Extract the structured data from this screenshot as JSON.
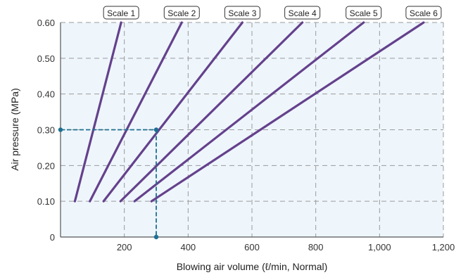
{
  "chart_data": {
    "type": "line",
    "xlabel": "Blowing air volume (ℓ/min, Normal)",
    "ylabel": "Air pressure (MPa)",
    "xlim": [
      0,
      1200
    ],
    "ylim": [
      0,
      0.6
    ],
    "x_ticks": [
      {
        "value": 200,
        "label": "200"
      },
      {
        "value": 400,
        "label": "400"
      },
      {
        "value": 600,
        "label": "600"
      },
      {
        "value": 800,
        "label": "800"
      },
      {
        "value": 1000,
        "label": "1,000"
      },
      {
        "value": 1200,
        "label": "1,200"
      }
    ],
    "y_ticks": [
      {
        "value": 0,
        "label": "0"
      },
      {
        "value": 0.1,
        "label": "0.10"
      },
      {
        "value": 0.2,
        "label": "0.20"
      },
      {
        "value": 0.3,
        "label": "0.30"
      },
      {
        "value": 0.4,
        "label": "0.40"
      },
      {
        "value": 0.5,
        "label": "0.50"
      },
      {
        "value": 0.6,
        "label": "0.60"
      }
    ],
    "grid": true,
    "series": [
      {
        "name": "Scale 1",
        "points": [
          [
            45,
            0.1
          ],
          [
            190,
            0.6
          ]
        ]
      },
      {
        "name": "Scale 2",
        "points": [
          [
            92,
            0.1
          ],
          [
            380,
            0.6
          ]
        ]
      },
      {
        "name": "Scale 3",
        "points": [
          [
            135,
            0.1
          ],
          [
            570,
            0.6
          ]
        ]
      },
      {
        "name": "Scale 4",
        "points": [
          [
            188,
            0.1
          ],
          [
            758,
            0.6
          ]
        ]
      },
      {
        "name": "Scale 5",
        "points": [
          [
            232,
            0.1
          ],
          [
            950,
            0.6
          ]
        ]
      },
      {
        "name": "Scale 6",
        "points": [
          [
            285,
            0.1
          ],
          [
            1138,
            0.6
          ]
        ]
      }
    ],
    "annotation": {
      "x": 300,
      "y": 0.3
    },
    "colors": {
      "series": "#65418c",
      "annotation": "#1e6f91",
      "plot_background": "#eef6fc",
      "grid": "#9a9a9a",
      "axis": "#555555"
    }
  }
}
